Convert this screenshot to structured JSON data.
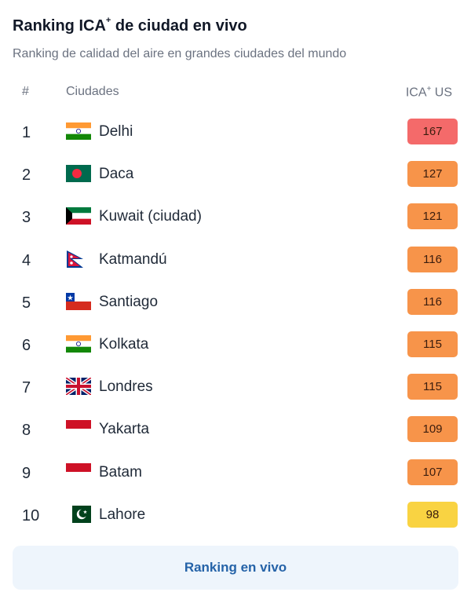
{
  "header": {
    "title": "Ranking ICA",
    "title_sup": "+",
    "title_suffix": " de ciudad en vivo",
    "subtitle": "Ranking de calidad del aire en grandes ciudades del mundo"
  },
  "table": {
    "col_rank": "#",
    "col_city": "Ciudades",
    "col_aqi": "ICA",
    "col_aqi_sup": "+",
    "col_aqi_suffix": " US",
    "rows": [
      {
        "rank": "1",
        "city": "Delhi",
        "flag": "india-flag-icon",
        "aqi": "167",
        "color": "#f46a6a"
      },
      {
        "rank": "2",
        "city": "Daca",
        "flag": "bangladesh-flag-icon",
        "aqi": "127",
        "color": "#f7944a"
      },
      {
        "rank": "3",
        "city": "Kuwait (ciudad)",
        "flag": "kuwait-flag-icon",
        "aqi": "121",
        "color": "#f7944a"
      },
      {
        "rank": "4",
        "city": "Katmandú",
        "flag": "nepal-flag-icon",
        "aqi": "116",
        "color": "#f7944a"
      },
      {
        "rank": "5",
        "city": "Santiago",
        "flag": "chile-flag-icon",
        "aqi": "116",
        "color": "#f7944a"
      },
      {
        "rank": "6",
        "city": "Kolkata",
        "flag": "india-flag-icon",
        "aqi": "115",
        "color": "#f7944a"
      },
      {
        "rank": "7",
        "city": "Londres",
        "flag": "uk-flag-icon",
        "aqi": "115",
        "color": "#f7944a"
      },
      {
        "rank": "8",
        "city": "Yakarta",
        "flag": "indonesia-flag-icon",
        "aqi": "109",
        "color": "#f7944a"
      },
      {
        "rank": "9",
        "city": "Batam",
        "flag": "indonesia-flag-icon",
        "aqi": "107",
        "color": "#f7944a"
      },
      {
        "rank": "10",
        "city": "Lahore",
        "flag": "pakistan-flag-icon",
        "aqi": "98",
        "color": "#f9d342"
      }
    ]
  },
  "cta": {
    "label": "Ranking en vivo"
  }
}
